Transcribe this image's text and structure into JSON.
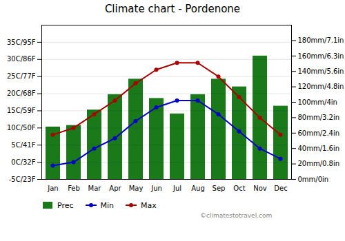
{
  "chart_data": {
    "type": "combo",
    "title": "Climate chart - Pordenone",
    "categories": [
      "Jan",
      "Feb",
      "Mar",
      "Apr",
      "May",
      "Jun",
      "Jul",
      "Aug",
      "Sep",
      "Oct",
      "Nov",
      "Dec"
    ],
    "series": [
      {
        "name": "Prec",
        "type": "bar",
        "axis": "y2",
        "color": "#1a7a1a",
        "values": [
          68,
          70,
          90,
          110,
          130,
          105,
          85,
          110,
          130,
          120,
          160,
          95
        ]
      },
      {
        "name": "Min",
        "type": "line",
        "color": "#0000cc",
        "marker": "circle",
        "values": [
          -1,
          0,
          4,
          7,
          12,
          16,
          18,
          18,
          14,
          9,
          4,
          1
        ]
      },
      {
        "name": "Max",
        "type": "line",
        "color": "#aa0000",
        "marker": "circle",
        "values": [
          8,
          10,
          14,
          18,
          23,
          27,
          29,
          29,
          25,
          19,
          13,
          8
        ]
      }
    ],
    "ylim": [
      -5,
      40
    ],
    "yticks": [
      {
        "value": -5,
        "label": "-5C/23F"
      },
      {
        "value": 0,
        "label": "0C/32F"
      },
      {
        "value": 5,
        "label": "5C/41F"
      },
      {
        "value": 10,
        "label": "10C/50F"
      },
      {
        "value": 15,
        "label": "15C/59F"
      },
      {
        "value": 20,
        "label": "20C/68F"
      },
      {
        "value": 25,
        "label": "25C/77F"
      },
      {
        "value": 30,
        "label": "30C/86F"
      },
      {
        "value": 35,
        "label": "35C/95F"
      }
    ],
    "y2lim": [
      0,
      200
    ],
    "y2ticks": [
      {
        "value": 0,
        "label": "0mm/0in"
      },
      {
        "value": 20,
        "label": "20mm/0.8in"
      },
      {
        "value": 40,
        "label": "40mm/1.6in"
      },
      {
        "value": 60,
        "label": "60mm/2.4in"
      },
      {
        "value": 80,
        "label": "80mm/3.2in"
      },
      {
        "value": 100,
        "label": "100mm/4in"
      },
      {
        "value": 120,
        "label": "120mm/4.8in"
      },
      {
        "value": 140,
        "label": "140mm/5.6in"
      },
      {
        "value": 160,
        "label": "160mm/6.3in"
      },
      {
        "value": 180,
        "label": "180mm/7.1in"
      }
    ],
    "grid": true,
    "legend": "lower left",
    "annotations": [
      "©climatestotravel.com"
    ]
  }
}
